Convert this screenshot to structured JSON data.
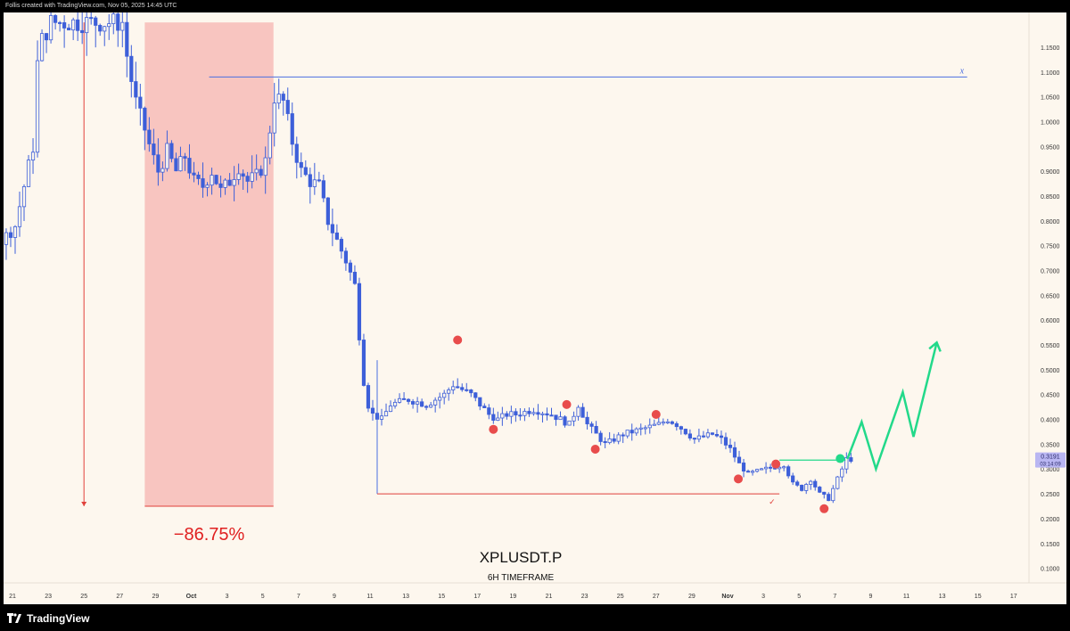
{
  "header": {
    "text": "Follis created with TradingView.com, Nov 05, 2025 14:45 UTC"
  },
  "footer": {
    "brand": "TradingView",
    "logo_icon": "tradingview-logo-icon"
  },
  "colors": {
    "background": "#fdf7ee",
    "candle": "#3d5fd9",
    "drop_zone": "#f8c5c0",
    "red_line": "#e0403a",
    "pivot_dot": "#e84c4c",
    "projection": "#22d98a",
    "blue_line": "#4b6fe0",
    "price_badge": "#b9b6f2"
  },
  "chart_data": {
    "type": "candlestick",
    "symbol": "XPLUSDT.P",
    "timeframe": "6H TIMEFRAME",
    "ylim": [
      0.05,
      1.2
    ],
    "y_ticks": [
      "1.1500",
      "1.1000",
      "1.0500",
      "1.0000",
      "0.9500",
      "0.9000",
      "0.8500",
      "0.8000",
      "0.7500",
      "0.7000",
      "0.6500",
      "0.6000",
      "0.5500",
      "0.5000",
      "0.4500",
      "0.4000",
      "0.3500",
      "0.3000",
      "0.2500",
      "0.2000",
      "0.1500",
      "0.1000"
    ],
    "x_ticks": [
      "21",
      "23",
      "25",
      "27",
      "29",
      "Oct",
      "3",
      "5",
      "7",
      "9",
      "11",
      "13",
      "15",
      "17",
      "19",
      "21",
      "23",
      "25",
      "27",
      "29",
      "Nov",
      "3",
      "5",
      "7",
      "9",
      "11",
      "13",
      "15",
      "17"
    ],
    "price_path": [
      [
        -8,
        0.76
      ],
      [
        -7,
        0.74
      ],
      [
        -6,
        0.72
      ],
      [
        -5,
        0.73
      ],
      [
        -4,
        0.8
      ],
      [
        -3,
        0.74
      ],
      [
        -2,
        0.7
      ],
      [
        -1,
        0.75
      ],
      [
        0,
        0.79
      ],
      [
        1,
        0.95
      ],
      [
        1.3,
        1.15
      ],
      [
        2,
        1.2
      ],
      [
        6,
        1.2
      ],
      [
        6.3,
        1.12
      ],
      [
        6.8,
        1.03
      ],
      [
        7.3,
        0.98
      ],
      [
        7.6,
        0.94
      ],
      [
        8,
        0.9
      ],
      [
        8.5,
        0.94
      ],
      [
        9,
        0.9
      ],
      [
        9.5,
        0.93
      ],
      [
        10,
        0.88
      ],
      [
        10.5,
        0.87
      ],
      [
        11,
        0.9
      ],
      [
        11.5,
        0.86
      ],
      [
        12,
        0.88
      ],
      [
        12.5,
        0.91
      ],
      [
        13,
        0.88
      ],
      [
        13.5,
        0.89
      ],
      [
        14,
        0.92
      ],
      [
        14.5,
        1.05
      ],
      [
        15,
        1.04
      ],
      [
        15.5,
        0.96
      ],
      [
        16,
        0.9
      ],
      [
        16.5,
        0.88
      ],
      [
        17,
        0.87
      ],
      [
        17.5,
        0.8
      ],
      [
        18,
        0.76
      ],
      [
        18.5,
        0.72
      ],
      [
        19,
        0.67
      ],
      [
        19.3,
        0.55
      ],
      [
        19.6,
        0.44
      ],
      [
        20,
        0.41
      ],
      [
        20.5,
        0.4
      ],
      [
        21,
        0.43
      ],
      [
        22,
        0.44
      ],
      [
        23,
        0.43
      ],
      [
        24,
        0.45
      ],
      [
        24.5,
        0.47
      ],
      [
        25,
        0.46
      ],
      [
        25.5,
        0.45
      ],
      [
        26,
        0.43
      ],
      [
        26.5,
        0.41
      ],
      [
        27,
        0.4
      ],
      [
        27.5,
        0.41
      ],
      [
        28,
        0.41
      ],
      [
        29,
        0.42
      ],
      [
        30,
        0.41
      ],
      [
        30.5,
        0.4
      ],
      [
        31,
        0.39
      ],
      [
        31.5,
        0.43
      ],
      [
        32,
        0.39
      ],
      [
        32.5,
        0.37
      ],
      [
        33,
        0.35
      ],
      [
        34,
        0.37
      ],
      [
        35,
        0.38
      ],
      [
        36,
        0.39
      ],
      [
        36.5,
        0.4
      ],
      [
        37,
        0.39
      ],
      [
        38,
        0.36
      ],
      [
        39,
        0.37
      ],
      [
        39.5,
        0.36
      ],
      [
        40,
        0.34
      ],
      [
        40.5,
        0.31
      ],
      [
        41,
        0.29
      ],
      [
        42,
        0.3
      ],
      [
        43,
        0.31
      ],
      [
        43.5,
        0.27
      ],
      [
        44,
        0.26
      ],
      [
        44.5,
        0.28
      ],
      [
        45,
        0.25
      ],
      [
        45.5,
        0.24
      ],
      [
        46,
        0.28
      ],
      [
        46.5,
        0.32
      ]
    ],
    "drop_zone": {
      "x_start": 7,
      "x_end": 14.2,
      "y_top": 1.2,
      "y_bottom": 0.225,
      "label": "−86.75%"
    },
    "resistance_line": {
      "y": 1.09,
      "x_start": 10.6,
      "x_end": 53,
      "label": "x"
    },
    "support_line": {
      "y": 0.25,
      "x_start": 20,
      "x_end": 42.5,
      "marker": "✓"
    },
    "breakout_line": {
      "y": 0.318,
      "x_start": 42.5,
      "x_end": 46.2
    },
    "pivot_points": [
      {
        "x": 24.5,
        "y": 0.56
      },
      {
        "x": 26.5,
        "y": 0.38
      },
      {
        "x": 30.6,
        "y": 0.43
      },
      {
        "x": 32.2,
        "y": 0.34
      },
      {
        "x": 35.6,
        "y": 0.41
      },
      {
        "x": 40.2,
        "y": 0.28
      },
      {
        "x": 42.3,
        "y": 0.31
      },
      {
        "x": 45,
        "y": 0.22
      }
    ],
    "current_point": {
      "x": 45.9,
      "y": 0.321
    },
    "projection_path": [
      [
        46.3,
        0.32
      ],
      [
        47.1,
        0.395
      ],
      [
        47.9,
        0.3
      ],
      [
        49.4,
        0.455
      ],
      [
        50.0,
        0.365
      ],
      [
        51.3,
        0.555
      ]
    ],
    "current_price": {
      "value": "0.3191",
      "countdown": "03:14:09"
    }
  }
}
